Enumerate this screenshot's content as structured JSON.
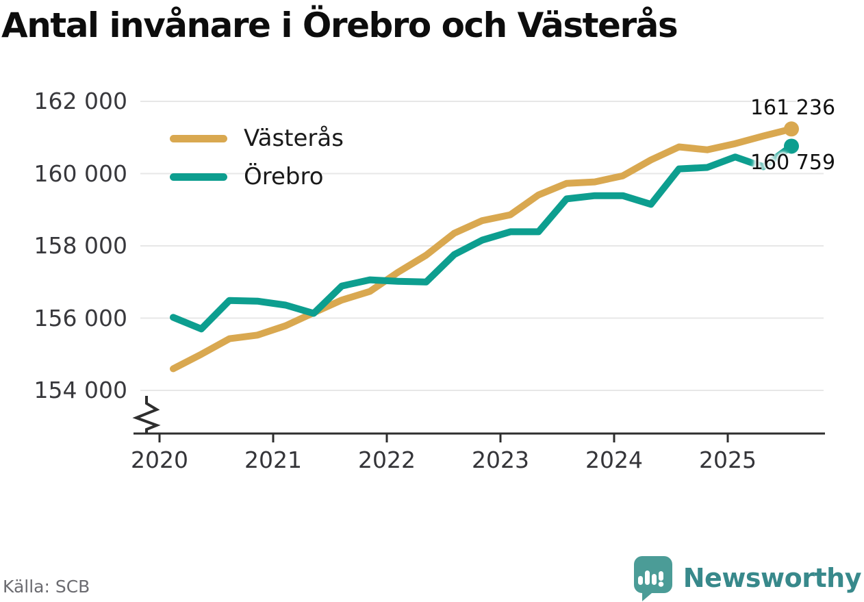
{
  "title": "Antal invånare i Örebro och Västerås",
  "source": "Källa: SCB",
  "logo": {
    "text": "Newsworthy"
  },
  "colors": {
    "vasteras": "#d9a850",
    "orebro": "#0d9e8f",
    "axis": "#2e2e2e",
    "grid": "#e7e7e7",
    "label_dark": "#111111",
    "tick_text": "#38383c",
    "muted_text": "#6b6b70",
    "logo_icon": "#4b9c97",
    "logo_text": "#38898b",
    "background": "#ffffff"
  },
  "chart_data": {
    "type": "line",
    "title": "Antal invånare i Örebro och Västerås",
    "x_unit": "quarter",
    "grid": true,
    "legend_position": "top-left",
    "axis_break": true,
    "ylim": [
      154000,
      162000
    ],
    "quarters": [
      "2020-K1",
      "2020-K2",
      "2020-K3",
      "2020-K4",
      "2021-K1",
      "2021-K2",
      "2021-K3",
      "2021-K4",
      "2022-K1",
      "2022-K2",
      "2022-K3",
      "2022-K4",
      "2023-K1",
      "2023-K2",
      "2023-K3",
      "2023-K4",
      "2024-K1",
      "2024-K2",
      "2024-K3",
      "2024-K4",
      "2025-K1",
      "2025-K2",
      "2025-K3"
    ],
    "x_ticks": [
      "2020",
      "2021",
      "2022",
      "2023",
      "2024",
      "2025"
    ],
    "y_ticks": [
      {
        "value": 162000,
        "label": "162 000"
      },
      {
        "value": 160000,
        "label": "160 000"
      },
      {
        "value": 158000,
        "label": "158 000"
      },
      {
        "value": 156000,
        "label": "156 000"
      },
      {
        "value": 154000,
        "label": "154 000"
      }
    ],
    "series": [
      {
        "name": "Västerås",
        "color": "#d9a850",
        "end_label": "161 236",
        "values": [
          154600,
          155000,
          155430,
          155530,
          155790,
          156150,
          156500,
          156740,
          157270,
          157740,
          158350,
          158700,
          158860,
          159410,
          159730,
          159770,
          159940,
          160380,
          160740,
          160660,
          160830,
          161040,
          161236
        ]
      },
      {
        "name": "Örebro",
        "color": "#0d9e8f",
        "end_label": "160 759",
        "values": [
          156020,
          155700,
          156490,
          156470,
          156360,
          156130,
          156890,
          157060,
          157020,
          157000,
          157760,
          158160,
          158390,
          158390,
          159300,
          159390,
          159390,
          159150,
          160130,
          160170,
          160460,
          160190,
          160759
        ]
      }
    ]
  }
}
